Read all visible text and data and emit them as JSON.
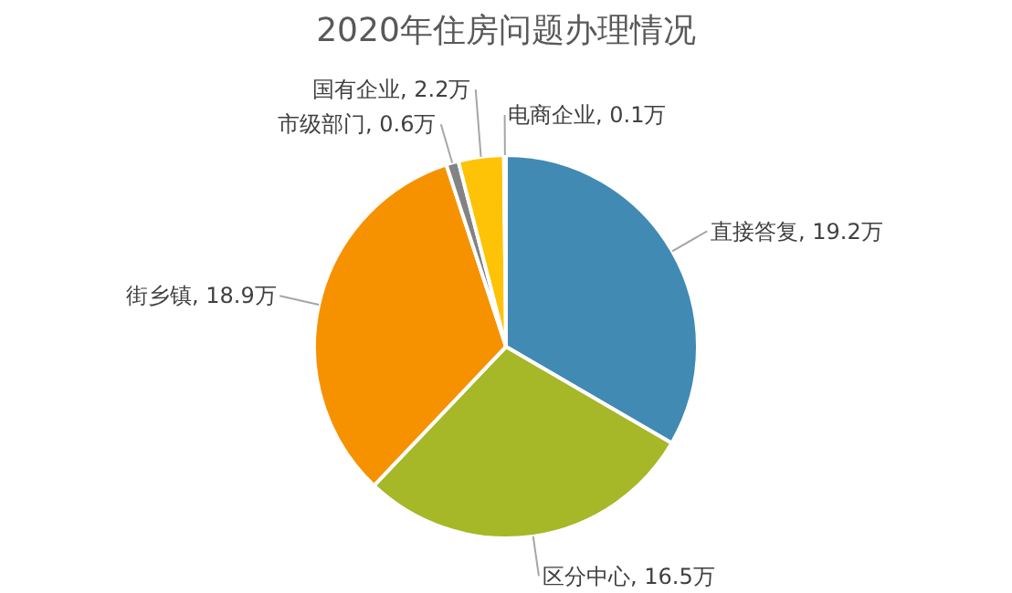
{
  "chart_data": {
    "type": "pie",
    "title": "2020年住房问题办理情况",
    "categories": [
      "直接答复",
      "区分中心",
      "街乡镇",
      "市级部门",
      "国有企业",
      "电商企业"
    ],
    "values": [
      19.2,
      16.5,
      18.9,
      0.6,
      2.2,
      0.1
    ],
    "value_labels": [
      "19.2万",
      "16.5万",
      "18.9万",
      "0.6万",
      "2.2万",
      "0.1万"
    ],
    "colors": [
      "#418ab3",
      "#a6b727",
      "#f69200",
      "#838383",
      "#fec306",
      "#5b9bd5"
    ],
    "legend": false
  }
}
